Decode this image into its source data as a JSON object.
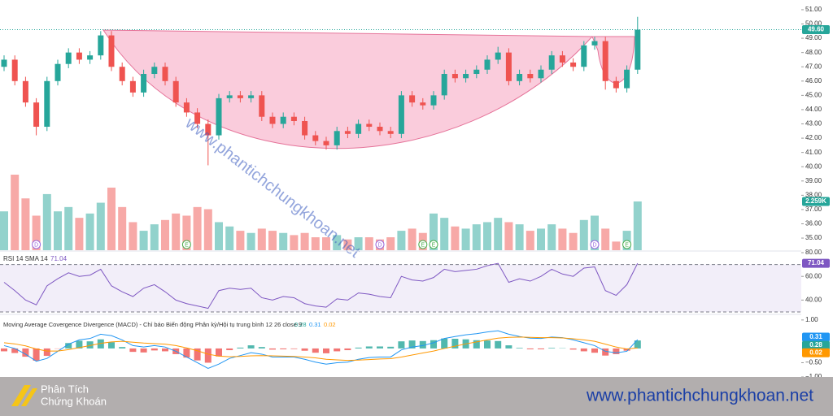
{
  "chart_data": {
    "type": "candlestick",
    "open": [
      47.0,
      47.5,
      46,
      44.5,
      42.8,
      46,
      47.2,
      48,
      47.5,
      47.8,
      49.2,
      47,
      46,
      45.2,
      46.5,
      47,
      46,
      44.5,
      43.8,
      43,
      42.2,
      44.8,
      45,
      44.8,
      45,
      43.5,
      43,
      43.5,
      43.2,
      42.2,
      41.8,
      41.5,
      42.5,
      42.3,
      43,
      42.8,
      42.5,
      42.3,
      45,
      44.5,
      44.3,
      45,
      46.5,
      46.2,
      46.5,
      46.8,
      47.5,
      48,
      46,
      46.5,
      46.2,
      46.8,
      47.8,
      47.3,
      47,
      48.5,
      48.8,
      46,
      45.5,
      46.8
    ],
    "high": [
      47.8,
      47.8,
      46.3,
      44.8,
      46.3,
      47.5,
      48.3,
      48.3,
      48.1,
      49.5,
      49.5,
      47.3,
      46.3,
      46.8,
      47.3,
      47.3,
      46.3,
      44.8,
      44.1,
      43.3,
      45.1,
      45.3,
      45.3,
      45.3,
      45.3,
      43.8,
      43.8,
      43.8,
      43.5,
      42.5,
      42.1,
      42.8,
      42.8,
      43.3,
      43.3,
      43.1,
      42.8,
      45.3,
      45.3,
      44.8,
      45.3,
      46.8,
      46.8,
      46.8,
      47.1,
      47.8,
      48.4,
      48.3,
      46.8,
      46.8,
      47.1,
      48.1,
      48.1,
      47.6,
      48.8,
      49.1,
      49.1,
      46.3,
      47.1,
      50.5
    ],
    "low": [
      46.7,
      45.7,
      44.2,
      42.2,
      42.5,
      45.7,
      46.9,
      47.2,
      47.2,
      47.5,
      46.7,
      45.7,
      44.9,
      44.9,
      46.2,
      45.7,
      44.2,
      43.5,
      42.7,
      40.1,
      41.9,
      44.5,
      44.5,
      44.5,
      43.2,
      42.7,
      42.7,
      42.9,
      41.9,
      41.5,
      41.2,
      41.2,
      42,
      42,
      42.5,
      42.2,
      42,
      42,
      44.2,
      44,
      44,
      44.7,
      45.9,
      45.9,
      46.2,
      46.5,
      47.2,
      45.7,
      45.7,
      45.9,
      45.9,
      46.5,
      47,
      46.7,
      46.7,
      48.2,
      45.4,
      45.2,
      45.2,
      46.5
    ],
    "close": [
      47.5,
      46,
      44.5,
      42.8,
      46,
      47.2,
      48,
      47.5,
      47.8,
      49.2,
      47,
      46,
      45.2,
      46.5,
      47,
      46,
      44.5,
      43.8,
      43,
      42.2,
      44.8,
      45,
      44.8,
      45,
      43.5,
      43,
      43.5,
      43.2,
      42.2,
      41.8,
      41.5,
      42.5,
      42.3,
      43,
      42.8,
      42.5,
      42.3,
      45,
      44.5,
      44.3,
      45,
      46.5,
      46.2,
      46.5,
      46.8,
      47.5,
      48,
      46,
      46.5,
      46.2,
      46.8,
      47.8,
      47.3,
      47,
      48.5,
      48.8,
      46,
      45.5,
      46.8,
      49.6
    ],
    "last_price_label": "49.60",
    "up_color": "#26a69a",
    "down_color": "#ef5350",
    "ylim": [
      34.15,
      51.68
    ],
    "yticks": [
      {
        "value": 35,
        "label": "35.00"
      },
      {
        "value": 36,
        "label": "36.00"
      },
      {
        "value": 37,
        "label": "37.00"
      },
      {
        "value": 38,
        "label": "38.00"
      },
      {
        "value": 39,
        "label": "39.00"
      },
      {
        "value": 40,
        "label": "40.00"
      },
      {
        "value": 41,
        "label": "41.00"
      },
      {
        "value": 42,
        "label": "42.00"
      },
      {
        "value": 43,
        "label": "43.00"
      },
      {
        "value": 44,
        "label": "44.00"
      },
      {
        "value": 45,
        "label": "45.00"
      },
      {
        "value": 46,
        "label": "46.00"
      },
      {
        "value": 47,
        "label": "47.00"
      },
      {
        "value": 48,
        "label": "48.00"
      },
      {
        "value": 49,
        "label": "49.00"
      },
      {
        "value": 50,
        "label": "50.00"
      },
      {
        "value": 51,
        "label": "51.00"
      }
    ],
    "volume": {
      "values": [
        1.8,
        3.5,
        2.4,
        1.6,
        2.6,
        1.8,
        2.0,
        1.5,
        1.7,
        2.2,
        2.9,
        2.0,
        1.3,
        0.9,
        1.2,
        1.4,
        1.7,
        1.6,
        2.0,
        1.9,
        1.3,
        1.1,
        0.9,
        0.8,
        1.0,
        0.9,
        0.8,
        0.7,
        0.8,
        0.6,
        0.6,
        0.7,
        0.5,
        0.6,
        0.6,
        0.5,
        0.6,
        0.9,
        1.0,
        0.8,
        1.7,
        1.5,
        1.1,
        1.0,
        1.2,
        1.3,
        1.5,
        1.3,
        1.2,
        0.9,
        1.0,
        1.2,
        1.0,
        0.8,
        1.4,
        1.6,
        1.0,
        0.4,
        0.9,
        2.259
      ],
      "last_label": "2.259K",
      "ylim": [
        0,
        3.5
      ]
    },
    "events": [
      {
        "label": "D",
        "at": 3
      },
      {
        "label": "E",
        "at": 17
      },
      {
        "label": "D",
        "at": 35
      },
      {
        "label": "E",
        "at": 39
      },
      {
        "label": "E",
        "at": 40
      },
      {
        "label": "D",
        "at": 55
      },
      {
        "label": "E",
        "at": 58
      }
    ],
    "rsi": {
      "title": "RSI 14 SMA 14",
      "color": "#7e57c2",
      "values": [
        55,
        48,
        40,
        36,
        52,
        58,
        63,
        60,
        61,
        66,
        52,
        47,
        43,
        50,
        53,
        47,
        40,
        37,
        35,
        33,
        48,
        50,
        49,
        50,
        42,
        40,
        43,
        42,
        37,
        35,
        34,
        41,
        40,
        46,
        45,
        43,
        42,
        60,
        57,
        56,
        59,
        66,
        64,
        65,
        66,
        69,
        71,
        55,
        58,
        56,
        60,
        66,
        62,
        60,
        67,
        68,
        48,
        44,
        53,
        71.04
      ],
      "ylim": [
        28.6,
        80.7
      ],
      "bands": [
        30,
        70
      ],
      "yticks": [
        {
          "value": 40,
          "label": "40.00"
        },
        {
          "value": 60,
          "label": "60.00"
        },
        {
          "value": 80,
          "label": "80.00"
        }
      ]
    },
    "macd": {
      "title": "Moving Average Covergence Divergence (MACD) - Chỉ báo Biến động Phân kỳ/Hội tụ trung bình 12 26 close 9",
      "hist": [
        -0.1,
        -0.16,
        -0.29,
        -0.43,
        -0.26,
        -0.01,
        0.19,
        0.27,
        0.25,
        0.32,
        0.22,
        0.05,
        -0.12,
        -0.14,
        -0.07,
        -0.1,
        -0.2,
        -0.32,
        -0.42,
        -0.5,
        -0.28,
        -0.06,
        0.03,
        0.11,
        0.05,
        -0.04,
        -0.03,
        -0.02,
        -0.08,
        -0.15,
        -0.17,
        -0.1,
        -0.06,
        0.03,
        0.07,
        0.07,
        0.06,
        0.25,
        0.28,
        0.26,
        0.29,
        0.35,
        0.34,
        0.32,
        0.29,
        0.28,
        0.26,
        0.11,
        0.02,
        -0.03,
        -0.03,
        0.02,
        0.01,
        -0.04,
        -0.1,
        -0.15,
        -0.25,
        -0.2,
        -0.08,
        0.28
      ],
      "macd": [
        0.1,
        0.0,
        -0.2,
        -0.45,
        -0.35,
        -0.1,
        0.15,
        0.3,
        0.35,
        0.5,
        0.45,
        0.3,
        0.1,
        0.05,
        0.1,
        0.05,
        -0.1,
        -0.3,
        -0.5,
        -0.7,
        -0.55,
        -0.35,
        -0.25,
        -0.15,
        -0.2,
        -0.3,
        -0.3,
        -0.3,
        -0.38,
        -0.48,
        -0.55,
        -0.5,
        -0.48,
        -0.38,
        -0.32,
        -0.3,
        -0.3,
        -0.05,
        0.05,
        0.1,
        0.2,
        0.35,
        0.42,
        0.48,
        0.52,
        0.58,
        0.62,
        0.5,
        0.42,
        0.36,
        0.35,
        0.4,
        0.38,
        0.3,
        0.2,
        0.1,
        -0.1,
        -0.15,
        -0.1,
        0.31
      ],
      "signal": [
        0.2,
        0.16,
        0.09,
        -0.02,
        -0.09,
        -0.09,
        -0.04,
        0.03,
        0.1,
        0.18,
        0.23,
        0.25,
        0.22,
        0.19,
        0.17,
        0.15,
        0.1,
        0.02,
        -0.08,
        -0.2,
        -0.27,
        -0.29,
        -0.28,
        -0.26,
        -0.25,
        -0.26,
        -0.27,
        -0.28,
        -0.3,
        -0.33,
        -0.38,
        -0.4,
        -0.42,
        -0.41,
        -0.39,
        -0.37,
        -0.36,
        -0.3,
        -0.23,
        -0.16,
        -0.09,
        0.0,
        0.08,
        0.16,
        0.23,
        0.3,
        0.36,
        0.39,
        0.4,
        0.39,
        0.38,
        0.38,
        0.37,
        0.34,
        0.3,
        0.25,
        0.15,
        0.05,
        -0.02,
        0.02
      ],
      "hist_up": "#26a69a",
      "hist_down": "#ef5350",
      "macd_color": "#2196f3",
      "signal_color": "#ff9800",
      "ylim": [
        -1.0,
        1.11
      ],
      "yticks": [
        {
          "value": 1,
          "label": "1.00"
        },
        {
          "value": -0.5,
          "label": "−0.50"
        },
        {
          "value": -1,
          "label": "−1.00"
        }
      ]
    },
    "watermark": "www.phantichchungkhoan.net"
  },
  "footer": {
    "logo_line1": "Phân Tích",
    "logo_line2": "Chứng Khoán",
    "url": "www.phantichchungkhoan.net"
  }
}
